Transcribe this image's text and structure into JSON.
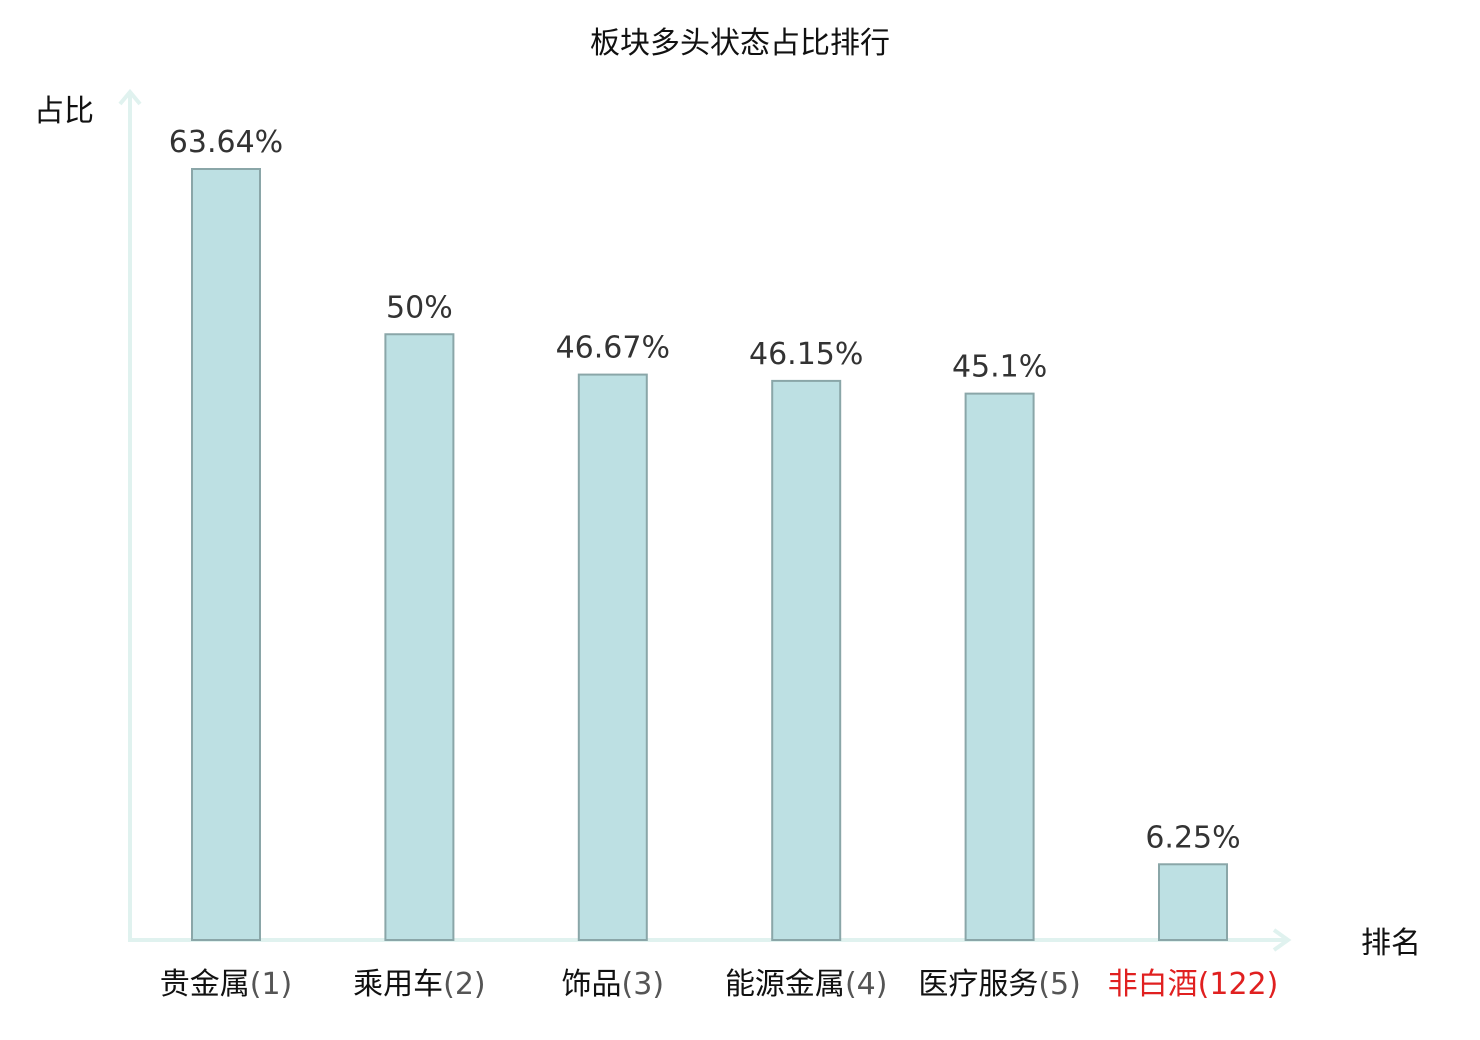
{
  "chart_data": {
    "type": "bar",
    "title": "板块多头状态占比排行",
    "ylabel": "占比",
    "xlabel": "排名",
    "value_suffix": "%",
    "ylim": [
      0,
      70
    ],
    "grid": false,
    "categories": [
      {
        "name": "贵金属",
        "rank": "(1)",
        "highlight": false
      },
      {
        "name": "乘用车",
        "rank": "(2)",
        "highlight": false
      },
      {
        "name": "饰品",
        "rank": "(3)",
        "highlight": false
      },
      {
        "name": "能源金属",
        "rank": "(4)",
        "highlight": false
      },
      {
        "name": "医疗服务",
        "rank": "(5)",
        "highlight": false
      },
      {
        "name": "非白酒",
        "rank": "(122)",
        "highlight": true
      }
    ],
    "values": [
      63.64,
      50,
      46.67,
      46.15,
      45.1,
      6.25
    ],
    "value_labels": [
      "63.64%",
      "50%",
      "46.67%",
      "46.15%",
      "45.1%",
      "6.25%"
    ],
    "colors": {
      "bar_fill": "#bde0e3",
      "bar_stroke": "#8aa6a8",
      "axis": "#e0f2ef",
      "highlight": "#e02020"
    }
  }
}
